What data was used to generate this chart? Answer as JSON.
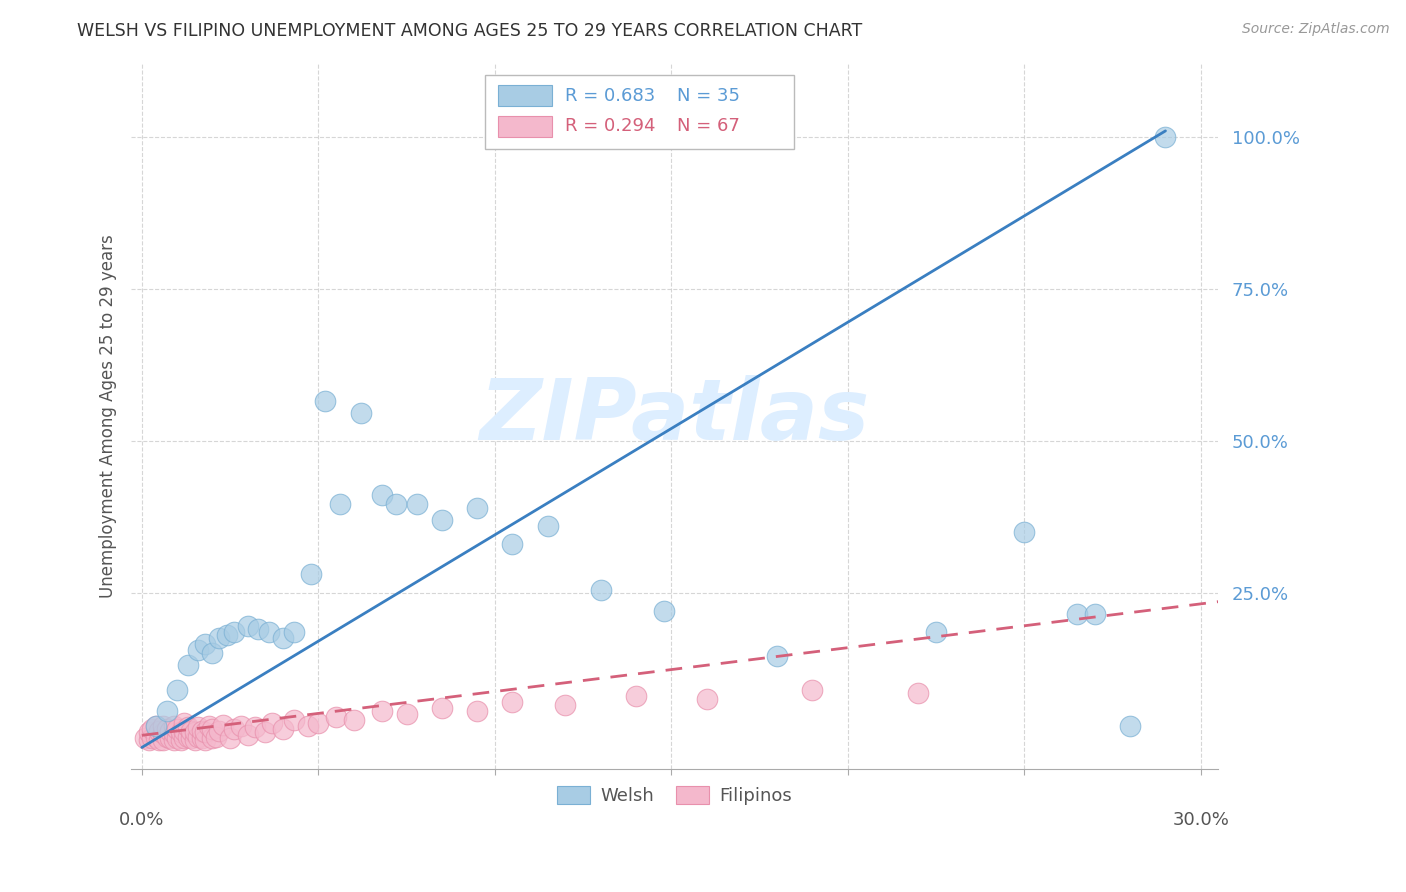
{
  "title": "WELSH VS FILIPINO UNEMPLOYMENT AMONG AGES 25 TO 29 YEARS CORRELATION CHART",
  "source": "Source: ZipAtlas.com",
  "ylabel": "Unemployment Among Ages 25 to 29 years",
  "xlim": [
    -0.003,
    0.305
  ],
  "ylim": [
    -0.04,
    1.12
  ],
  "yticks": [
    0.25,
    0.5,
    0.75,
    1.0
  ],
  "ytick_labels": [
    "25.0%",
    "50.0%",
    "75.0%",
    "100.0%"
  ],
  "xtick_label_left": "0.0%",
  "xtick_label_right": "30.0%",
  "welsh_color": "#a8cce4",
  "welsh_edge_color": "#7ab0d4",
  "welsh_line_color": "#3a7fc1",
  "filipino_color": "#f4b8cc",
  "filipino_edge_color": "#e890ac",
  "filipino_line_color": "#d4607a",
  "tick_label_color": "#5b9bd5",
  "watermark": "ZIPatlas",
  "watermark_color": "#ddeeff",
  "legend_welsh_r": "R = 0.683",
  "legend_welsh_n": "N = 35",
  "legend_filipino_r": "R = 0.294",
  "legend_filipino_n": "N = 67",
  "welsh_line_x0": 0.0,
  "welsh_line_y0": -0.005,
  "welsh_line_x1": 0.29,
  "welsh_line_y1": 1.01,
  "filipino_line_x0": 0.0,
  "filipino_line_y0": 0.015,
  "filipino_line_x1": 0.305,
  "filipino_line_y1": 0.235,
  "welsh_x": [
    0.004,
    0.007,
    0.01,
    0.013,
    0.016,
    0.018,
    0.02,
    0.022,
    0.024,
    0.026,
    0.03,
    0.033,
    0.036,
    0.04,
    0.043,
    0.048,
    0.052,
    0.056,
    0.062,
    0.068,
    0.072,
    0.078,
    0.085,
    0.095,
    0.105,
    0.115,
    0.13,
    0.148,
    0.18,
    0.225,
    0.25,
    0.265,
    0.27,
    0.28,
    0.29
  ],
  "welsh_y": [
    0.03,
    0.055,
    0.09,
    0.13,
    0.155,
    0.165,
    0.15,
    0.175,
    0.18,
    0.185,
    0.195,
    0.19,
    0.185,
    0.175,
    0.185,
    0.28,
    0.565,
    0.395,
    0.545,
    0.41,
    0.395,
    0.395,
    0.37,
    0.39,
    0.33,
    0.36,
    0.255,
    0.22,
    0.145,
    0.185,
    0.35,
    0.215,
    0.215,
    0.03,
    1.0
  ],
  "filipino_x": [
    0.001,
    0.002,
    0.002,
    0.003,
    0.003,
    0.004,
    0.004,
    0.005,
    0.005,
    0.006,
    0.006,
    0.006,
    0.007,
    0.007,
    0.008,
    0.008,
    0.009,
    0.009,
    0.009,
    0.01,
    0.01,
    0.011,
    0.011,
    0.012,
    0.012,
    0.012,
    0.013,
    0.013,
    0.014,
    0.014,
    0.015,
    0.015,
    0.016,
    0.016,
    0.017,
    0.017,
    0.018,
    0.018,
    0.019,
    0.02,
    0.02,
    0.021,
    0.022,
    0.023,
    0.025,
    0.026,
    0.028,
    0.03,
    0.032,
    0.035,
    0.037,
    0.04,
    0.043,
    0.047,
    0.05,
    0.055,
    0.06,
    0.068,
    0.075,
    0.085,
    0.095,
    0.105,
    0.12,
    0.14,
    0.16,
    0.19,
    0.22
  ],
  "filipino_y": [
    0.01,
    0.008,
    0.02,
    0.01,
    0.025,
    0.012,
    0.03,
    0.008,
    0.022,
    0.008,
    0.018,
    0.03,
    0.012,
    0.025,
    0.01,
    0.022,
    0.008,
    0.018,
    0.03,
    0.01,
    0.025,
    0.008,
    0.02,
    0.01,
    0.022,
    0.035,
    0.012,
    0.028,
    0.01,
    0.022,
    0.008,
    0.02,
    0.012,
    0.028,
    0.01,
    0.022,
    0.008,
    0.02,
    0.03,
    0.01,
    0.025,
    0.012,
    0.022,
    0.032,
    0.01,
    0.025,
    0.03,
    0.015,
    0.028,
    0.02,
    0.035,
    0.025,
    0.04,
    0.03,
    0.035,
    0.045,
    0.04,
    0.055,
    0.05,
    0.06,
    0.055,
    0.07,
    0.065,
    0.08,
    0.075,
    0.09,
    0.085
  ]
}
